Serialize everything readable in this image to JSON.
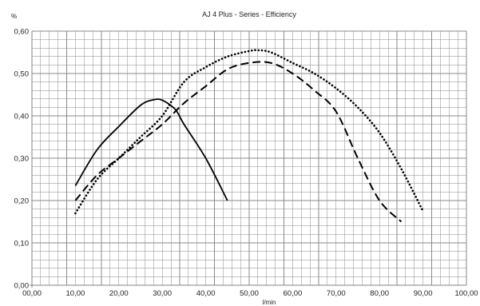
{
  "chart_data": {
    "type": "line",
    "title": "AJ 4 Plus - Series - Efficiency",
    "ylabel": "%",
    "xlabel": "l/min",
    "xlim": [
      0,
      100
    ],
    "ylim": [
      0,
      0.6
    ],
    "x_ticks": [
      "00,00",
      "10,00",
      "20,00",
      "30,00",
      "40,00",
      "50,00",
      "60,00",
      "70,00",
      "80,00",
      "90,00",
      "100,00"
    ],
    "y_ticks": [
      "0,00",
      "0,10",
      "0,20",
      "0,30",
      "0,40",
      "0,50",
      "0,60"
    ],
    "grid": true,
    "legend": "none",
    "series": [
      {
        "style": "solid",
        "x": [
          10,
          15,
          20,
          25,
          28,
          30,
          33,
          35,
          40,
          45
        ],
        "y": [
          0.235,
          0.32,
          0.375,
          0.425,
          0.438,
          0.437,
          0.415,
          0.38,
          0.3,
          0.2
        ]
      },
      {
        "style": "dashed",
        "x": [
          10,
          15,
          20,
          25,
          30,
          35,
          40,
          45,
          50,
          55,
          60,
          65,
          70,
          75,
          80,
          85
        ],
        "y": [
          0.2,
          0.26,
          0.3,
          0.34,
          0.38,
          0.43,
          0.47,
          0.51,
          0.525,
          0.525,
          0.5,
          0.46,
          0.41,
          0.3,
          0.2,
          0.15
        ]
      },
      {
        "style": "dotted",
        "x": [
          10,
          15,
          20,
          25,
          30,
          35,
          40,
          45,
          50,
          52,
          55,
          60,
          65,
          70,
          75,
          80,
          85,
          90
        ],
        "y": [
          0.17,
          0.25,
          0.3,
          0.35,
          0.4,
          0.48,
          0.515,
          0.54,
          0.553,
          0.555,
          0.55,
          0.525,
          0.5,
          0.465,
          0.42,
          0.36,
          0.275,
          0.175
        ]
      }
    ]
  }
}
